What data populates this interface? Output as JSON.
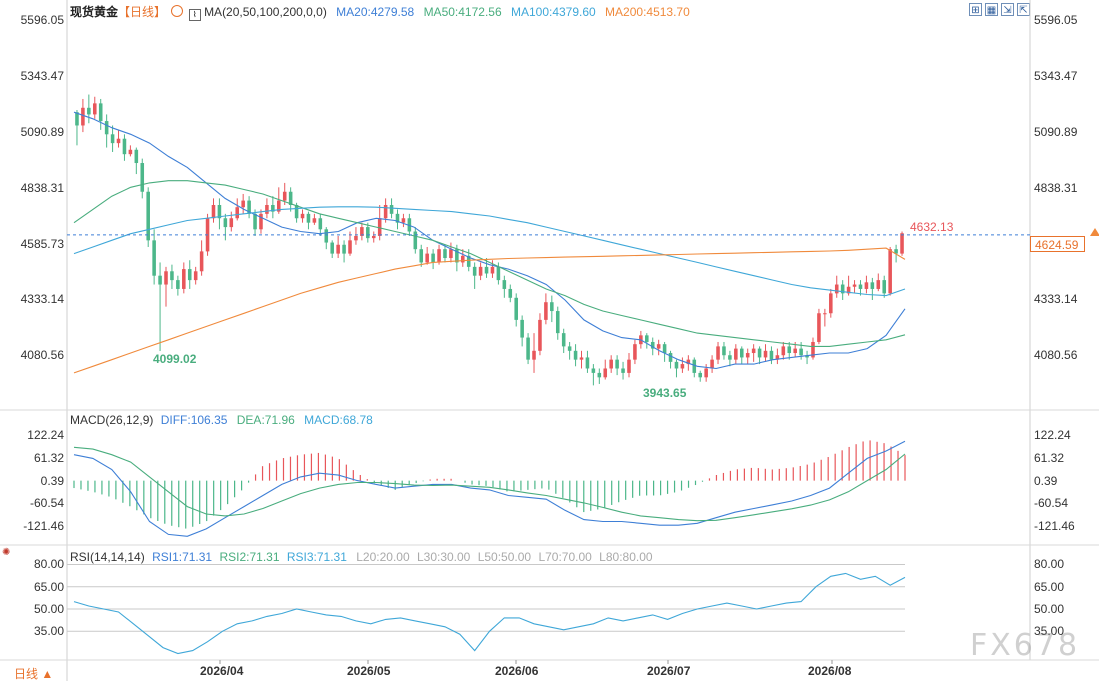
{
  "colors": {
    "up": "#e8565a",
    "down": "#4cb78a",
    "ma20": "#3e7fd6",
    "ma50": "#49ad7e",
    "ma100": "#3fa7d8",
    "ma200": "#f08a3c",
    "price": "#e8565a",
    "grid": "#d9d9d9"
  },
  "header": {
    "symbol": "现货黄金",
    "period": "【日线】",
    "ma_name": "MA(20,50,100,200,0,0)",
    "ma20": "MA20:4279.58",
    "ma50": "MA50:4172.56",
    "ma100": "MA100:4379.60",
    "ma200": "MA200:4513.70"
  },
  "macd_header": {
    "name": "MACD(26,12,9)",
    "diff": "DIFF:106.35",
    "dea": "DEA:71.96",
    "macd": "MACD:68.78"
  },
  "rsi_header": {
    "name": "RSI(14,14,14)",
    "rsi1": "RSI1:71.31",
    "rsi2": "RSI2:71.31",
    "rsi3": "RSI3:71.31",
    "l20": "L20:20.00",
    "l30": "L30:30.00",
    "l50": "L50:50.00",
    "l70": "L70:70.00",
    "l80": "L80:80.00"
  },
  "footer": {
    "period_button": "日线 ▲",
    "watermark": "FX678"
  },
  "icons": [
    "target-icon",
    "indicator-icon",
    "zoom-in-icon",
    "grid-icon",
    "expand-icon"
  ],
  "chart_data": [
    {
      "type": "candlestick",
      "title": "现货黄金",
      "y_ticks": [
        "5596.05",
        "5343.47",
        "5090.89",
        "4838.31",
        "4585.73",
        "4333.14",
        "4080.56"
      ],
      "ylim": [
        3900,
        5620
      ],
      "x_ticks": [
        "2026/04",
        "2026/05",
        "2026/06",
        "2026/07",
        "2026/08"
      ],
      "current_price": "4624.59",
      "annotations": {
        "high": "4632.13",
        "low1": "4099.02",
        "low2": "3943.65"
      },
      "candles": [
        [
          5180,
          5120,
          5190,
          5030
        ],
        [
          5120,
          5200,
          5240,
          5090
        ],
        [
          5200,
          5170,
          5260,
          5130
        ],
        [
          5170,
          5220,
          5250,
          5150
        ],
        [
          5220,
          5140,
          5240,
          5100
        ],
        [
          5140,
          5080,
          5170,
          5020
        ],
        [
          5080,
          5040,
          5120,
          5000
        ],
        [
          5040,
          5060,
          5100,
          5020
        ],
        [
          5060,
          4990,
          5080,
          4960
        ],
        [
          4990,
          5010,
          5030,
          4980
        ],
        [
          5010,
          4950,
          5020,
          4900
        ],
        [
          4950,
          4820,
          4970,
          4790
        ],
        [
          4820,
          4600,
          4840,
          4570
        ],
        [
          4600,
          4440,
          4650,
          4400
        ],
        [
          4440,
          4400,
          4500,
          4099
        ],
        [
          4400,
          4460,
          4480,
          4300
        ],
        [
          4460,
          4420,
          4490,
          4380
        ],
        [
          4420,
          4380,
          4440,
          4350
        ],
        [
          4380,
          4470,
          4500,
          4360
        ],
        [
          4470,
          4420,
          4510,
          4380
        ],
        [
          4420,
          4460,
          4480,
          4400
        ],
        [
          4460,
          4550,
          4600,
          4440
        ],
        [
          4550,
          4700,
          4720,
          4530
        ],
        [
          4700,
          4760,
          4790,
          4680
        ],
        [
          4760,
          4700,
          4790,
          4650
        ],
        [
          4700,
          4660,
          4720,
          4600
        ],
        [
          4660,
          4700,
          4730,
          4640
        ],
        [
          4700,
          4750,
          4790,
          4690
        ],
        [
          4750,
          4780,
          4810,
          4720
        ],
        [
          4780,
          4720,
          4800,
          4700
        ],
        [
          4720,
          4650,
          4740,
          4620
        ],
        [
          4650,
          4720,
          4740,
          4630
        ],
        [
          4720,
          4760,
          4790,
          4700
        ],
        [
          4760,
          4730,
          4800,
          4700
        ],
        [
          4730,
          4780,
          4840,
          4720
        ],
        [
          4780,
          4820,
          4860,
          4760
        ],
        [
          4820,
          4760,
          4840,
          4730
        ],
        [
          4760,
          4700,
          4770,
          4680
        ],
        [
          4700,
          4720,
          4740,
          4680
        ],
        [
          4720,
          4680,
          4730,
          4650
        ],
        [
          4680,
          4700,
          4720,
          4670
        ],
        [
          4700,
          4650,
          4720,
          4620
        ],
        [
          4650,
          4590,
          4660,
          4560
        ],
        [
          4590,
          4540,
          4600,
          4520
        ],
        [
          4540,
          4580,
          4620,
          4520
        ],
        [
          4580,
          4540,
          4600,
          4500
        ],
        [
          4540,
          4600,
          4640,
          4530
        ],
        [
          4600,
          4620,
          4660,
          4580
        ],
        [
          4620,
          4660,
          4680,
          4600
        ],
        [
          4660,
          4610,
          4680,
          4590
        ],
        [
          4610,
          4620,
          4640,
          4590
        ],
        [
          4620,
          4700,
          4760,
          4600
        ],
        [
          4700,
          4760,
          4790,
          4680
        ],
        [
          4760,
          4720,
          4790,
          4700
        ],
        [
          4720,
          4680,
          4740,
          4650
        ],
        [
          4680,
          4700,
          4720,
          4660
        ],
        [
          4700,
          4640,
          4720,
          4620
        ],
        [
          4640,
          4560,
          4660,
          4540
        ],
        [
          4560,
          4500,
          4580,
          4480
        ],
        [
          4500,
          4540,
          4570,
          4490
        ],
        [
          4540,
          4500,
          4560,
          4470
        ],
        [
          4500,
          4560,
          4580,
          4490
        ],
        [
          4560,
          4520,
          4580,
          4500
        ],
        [
          4520,
          4560,
          4590,
          4500
        ],
        [
          4560,
          4500,
          4580,
          4460
        ],
        [
          4500,
          4530,
          4560,
          4480
        ],
        [
          4530,
          4480,
          4560,
          4460
        ],
        [
          4480,
          4440,
          4500,
          4380
        ],
        [
          4440,
          4480,
          4500,
          4420
        ],
        [
          4480,
          4450,
          4520,
          4430
        ],
        [
          4450,
          4480,
          4510,
          4430
        ],
        [
          4480,
          4420,
          4500,
          4400
        ],
        [
          4420,
          4380,
          4440,
          4340
        ],
        [
          4380,
          4340,
          4400,
          4320
        ],
        [
          4340,
          4240,
          4360,
          4210
        ],
        [
          4240,
          4160,
          4260,
          4120
        ],
        [
          4160,
          4060,
          4180,
          4040
        ],
        [
          4060,
          4100,
          4180,
          4000
        ],
        [
          4100,
          4240,
          4270,
          4080
        ],
        [
          4240,
          4320,
          4360,
          4220
        ],
        [
          4320,
          4280,
          4350,
          4230
        ],
        [
          4280,
          4180,
          4300,
          4150
        ],
        [
          4180,
          4120,
          4200,
          4090
        ],
        [
          4120,
          4100,
          4140,
          4060
        ],
        [
          4100,
          4060,
          4130,
          4030
        ],
        [
          4060,
          4070,
          4100,
          4020
        ],
        [
          4070,
          4020,
          4100,
          4000
        ],
        [
          4020,
          4000,
          4040,
          3943.65
        ],
        [
          4000,
          3980,
          4020,
          3950
        ],
        [
          3980,
          4020,
          4060,
          3970
        ],
        [
          4020,
          4060,
          4080,
          4000
        ],
        [
          4060,
          4020,
          4080,
          3990
        ],
        [
          4020,
          4000,
          4050,
          3970
        ],
        [
          4000,
          4060,
          4090,
          3980
        ],
        [
          4060,
          4130,
          4150,
          4040
        ],
        [
          4130,
          4170,
          4190,
          4110
        ],
        [
          4170,
          4140,
          4180,
          4110
        ],
        [
          4140,
          4110,
          4160,
          4080
        ],
        [
          4110,
          4130,
          4150,
          4080
        ],
        [
          4130,
          4090,
          4140,
          4050
        ],
        [
          4090,
          4050,
          4100,
          4020
        ],
        [
          4050,
          4020,
          4060,
          3980
        ],
        [
          4020,
          4040,
          4070,
          4000
        ],
        [
          4040,
          4060,
          4080,
          4010
        ],
        [
          4060,
          4000,
          4070,
          3980
        ],
        [
          4000,
          3980,
          4010,
          3960
        ],
        [
          3980,
          4020,
          4040,
          3960
        ],
        [
          4020,
          4060,
          4080,
          4000
        ],
        [
          4060,
          4120,
          4140,
          4040
        ],
        [
          4120,
          4080,
          4140,
          4060
        ],
        [
          4080,
          4060,
          4100,
          4030
        ],
        [
          4060,
          4110,
          4130,
          4040
        ],
        [
          4110,
          4070,
          4120,
          4040
        ],
        [
          4070,
          4090,
          4110,
          4040
        ],
        [
          4090,
          4110,
          4130,
          4050
        ],
        [
          4110,
          4070,
          4120,
          4040
        ],
        [
          4070,
          4100,
          4130,
          4050
        ],
        [
          4100,
          4060,
          4120,
          4040
        ],
        [
          4060,
          4080,
          4110,
          4040
        ],
        [
          4080,
          4120,
          4140,
          4060
        ],
        [
          4120,
          4090,
          4140,
          4060
        ],
        [
          4090,
          4110,
          4140,
          4070
        ],
        [
          4110,
          4080,
          4140,
          4060
        ],
        [
          4080,
          4070,
          4100,
          4040
        ],
        [
          4070,
          4140,
          4160,
          4060
        ],
        [
          4140,
          4270,
          4290,
          4130
        ],
        [
          4270,
          4270,
          4290,
          4210
        ],
        [
          4270,
          4360,
          4380,
          4250
        ],
        [
          4360,
          4400,
          4440,
          4340
        ],
        [
          4400,
          4360,
          4420,
          4330
        ],
        [
          4360,
          4390,
          4440,
          4350
        ],
        [
          4390,
          4400,
          4420,
          4360
        ],
        [
          4400,
          4380,
          4420,
          4350
        ],
        [
          4380,
          4410,
          4440,
          4360
        ],
        [
          4410,
          4380,
          4430,
          4330
        ],
        [
          4380,
          4420,
          4450,
          4370
        ],
        [
          4420,
          4360,
          4440,
          4340
        ],
        [
          4360,
          4560,
          4570,
          4350
        ],
        [
          4560,
          4540,
          4580,
          4500
        ],
        [
          4540,
          4632.13,
          4640,
          4530
        ]
      ],
      "ma20": [
        5180,
        5150,
        5110,
        5080,
        5040,
        4980,
        4930,
        4860,
        4790,
        4740,
        4700,
        4660,
        4640,
        4630,
        4640,
        4680,
        4700,
        4690,
        4660,
        4600,
        4560,
        4520,
        4490,
        4470,
        4440,
        4400,
        4330,
        4240,
        4190,
        4160,
        4150,
        4100,
        4060,
        4030,
        4020,
        4040,
        4040,
        4060,
        4070,
        4080,
        4090,
        4090,
        4110,
        4170,
        4290
      ],
      "ma50": [
        4680,
        4740,
        4800,
        4840,
        4860,
        4870,
        4870,
        4860,
        4850,
        4830,
        4810,
        4780,
        4750,
        4720,
        4700,
        4680,
        4660,
        4640,
        4620,
        4600,
        4570,
        4540,
        4500,
        4460,
        4420,
        4380,
        4350,
        4310,
        4280,
        4260,
        4240,
        4220,
        4200,
        4180,
        4170,
        4160,
        4150,
        4140,
        4130,
        4120,
        4120,
        4130,
        4140,
        4150,
        4172.56
      ],
      "ma100": [
        4540,
        4570,
        4600,
        4630,
        4650,
        4670,
        4690,
        4700,
        4710,
        4720,
        4730,
        4740,
        4745,
        4750,
        4752,
        4752,
        4750,
        4745,
        4740,
        4735,
        4730,
        4720,
        4710,
        4695,
        4680,
        4660,
        4640,
        4620,
        4600,
        4580,
        4560,
        4540,
        4520,
        4500,
        4480,
        4460,
        4440,
        4420,
        4400,
        4385,
        4375,
        4365,
        4355,
        4350,
        4379.6
      ],
      "ma200": [
        4000,
        4030,
        4060,
        4090,
        4120,
        4150,
        4180,
        4210,
        4240,
        4270,
        4300,
        4330,
        4360,
        4385,
        4410,
        4430,
        4450,
        4470,
        4485,
        4500,
        4505,
        4510,
        4514,
        4518,
        4520,
        4522,
        4524,
        4526,
        4528,
        4530,
        4532,
        4534,
        4536,
        4538,
        4540,
        4542,
        4544,
        4546,
        4548,
        4550,
        4552,
        4555,
        4560,
        4565,
        4513.7
      ]
    },
    {
      "type": "macd",
      "title": "MACD(26,12,9)",
      "y_ticks": [
        "122.24",
        "61.32",
        "0.39",
        "-60.54",
        "-121.46"
      ],
      "ylim": [
        -160,
        150
      ],
      "diff": [
        70,
        60,
        30,
        -30,
        -110,
        -145,
        -150,
        -130,
        -100,
        -70,
        -40,
        -10,
        10,
        20,
        15,
        0,
        -10,
        -20,
        -15,
        -10,
        -10,
        -20,
        -25,
        -40,
        -45,
        -50,
        -80,
        -105,
        -110,
        -110,
        -115,
        -120,
        -120,
        -115,
        -100,
        -85,
        -75,
        -65,
        -55,
        -40,
        -20,
        20,
        60,
        80,
        106.35
      ],
      "dea": [
        90,
        85,
        70,
        50,
        10,
        -30,
        -70,
        -90,
        -95,
        -90,
        -75,
        -55,
        -35,
        -20,
        -10,
        -5,
        -5,
        -8,
        -12,
        -13,
        -12,
        -15,
        -18,
        -25,
        -33,
        -40,
        -50,
        -60,
        -72,
        -85,
        -95,
        -100,
        -105,
        -108,
        -107,
        -100,
        -92,
        -84,
        -76,
        -66,
        -52,
        -30,
        0,
        30,
        71.96
      ],
      "macd": [
        -20,
        -30,
        -45,
        -70,
        -100,
        -120,
        -130,
        -110,
        -70,
        -20,
        40,
        60,
        70,
        75,
        60,
        20,
        -10,
        -25,
        -8,
        5,
        5,
        -10,
        -15,
        -30,
        -25,
        -20,
        -50,
        -85,
        -75,
        -55,
        -40,
        -40,
        -30,
        -10,
        15,
        30,
        35,
        30,
        35,
        45,
        65,
        90,
        110,
        100,
        68.78
      ]
    },
    {
      "type": "rsi",
      "title": "RSI(14,14,14)",
      "y_ticks": [
        "80.00",
        "65.00",
        "50.00",
        "35.00"
      ],
      "levels": [
        80,
        65,
        50,
        35
      ],
      "ylim": [
        17,
        83
      ],
      "rsi": [
        55,
        52,
        50,
        48,
        40,
        32,
        24,
        20,
        22,
        28,
        35,
        40,
        42,
        45,
        47,
        50,
        48,
        46,
        45,
        42,
        40,
        43,
        44,
        42,
        40,
        38,
        33,
        22,
        35,
        44,
        44,
        40,
        38,
        36,
        38,
        40,
        44,
        42,
        44,
        46,
        43,
        47,
        50,
        52,
        54,
        52,
        50,
        52,
        54,
        55,
        65,
        72,
        74,
        70,
        72,
        66,
        71.31
      ]
    }
  ]
}
